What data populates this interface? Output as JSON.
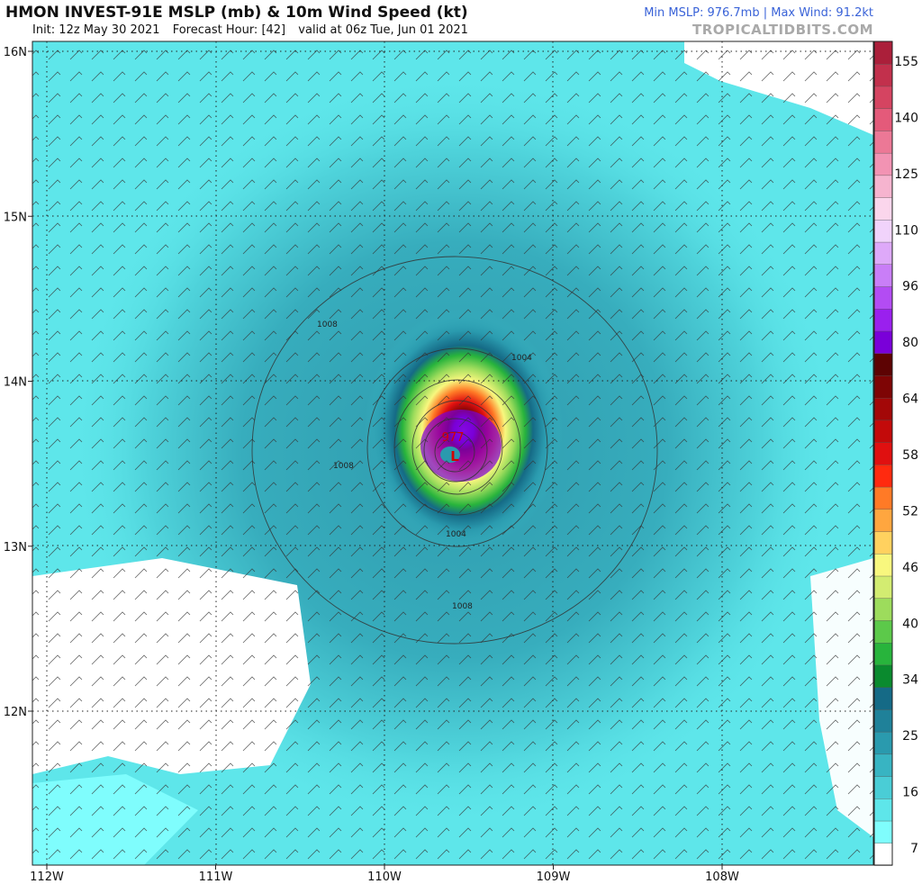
{
  "header": {
    "title": "HMON INVEST-91E MSLP (mb) & 10m Wind Speed (kt)",
    "init": "Init: 12z May 30 2021",
    "forecast_hour": "Forecast Hour: [42]",
    "valid": "valid at 06z Tue, Jun 01 2021",
    "stats": "Min MSLP: 976.7mb | Max Wind: 91.2kt",
    "brand": "TROPICALTIDBITS.COM"
  },
  "map": {
    "lat_labels": [
      "16N",
      "15N",
      "14N",
      "13N",
      "12N"
    ],
    "lon_labels": [
      "112W",
      "111W",
      "110W",
      "109W",
      "108W"
    ],
    "lats": [
      16,
      15,
      14,
      13,
      12
    ],
    "lons": [
      -112,
      -111,
      -110,
      -109,
      -108
    ],
    "center_pressure_label": "977",
    "low_symbol": "L",
    "isobar_labels": [
      "1008",
      "1008",
      "1004",
      "1004",
      "1008"
    ]
  },
  "colorbar": {
    "tick_labels": [
      "155",
      "140",
      "125",
      "110",
      "96",
      "80",
      "64",
      "58",
      "52",
      "46",
      "40",
      "34",
      "25",
      "16",
      "7"
    ],
    "colors": [
      "#ffffff",
      "#7ffdfd",
      "#5ee6ea",
      "#4acdd6",
      "#38b4c2",
      "#2a9aae",
      "#1f8199",
      "#156a86",
      "#0a8a2e",
      "#28b43c",
      "#5cc94a",
      "#9ddc5c",
      "#d3ec71",
      "#f8f77e",
      "#ffd15f",
      "#ffa63f",
      "#ff7a26",
      "#ff2a0f",
      "#e01010",
      "#c30a0a",
      "#a30808",
      "#7e0505",
      "#5d0303",
      "#7a00d9",
      "#9a20ee",
      "#b34cf3",
      "#c97ef7",
      "#dea9f9",
      "#f1d3fb",
      "#fbd6ec",
      "#f6b4cf",
      "#f293b3",
      "#ec7896",
      "#e45a7a",
      "#d54461",
      "#c2304c",
      "#ab1f3a"
    ]
  }
}
